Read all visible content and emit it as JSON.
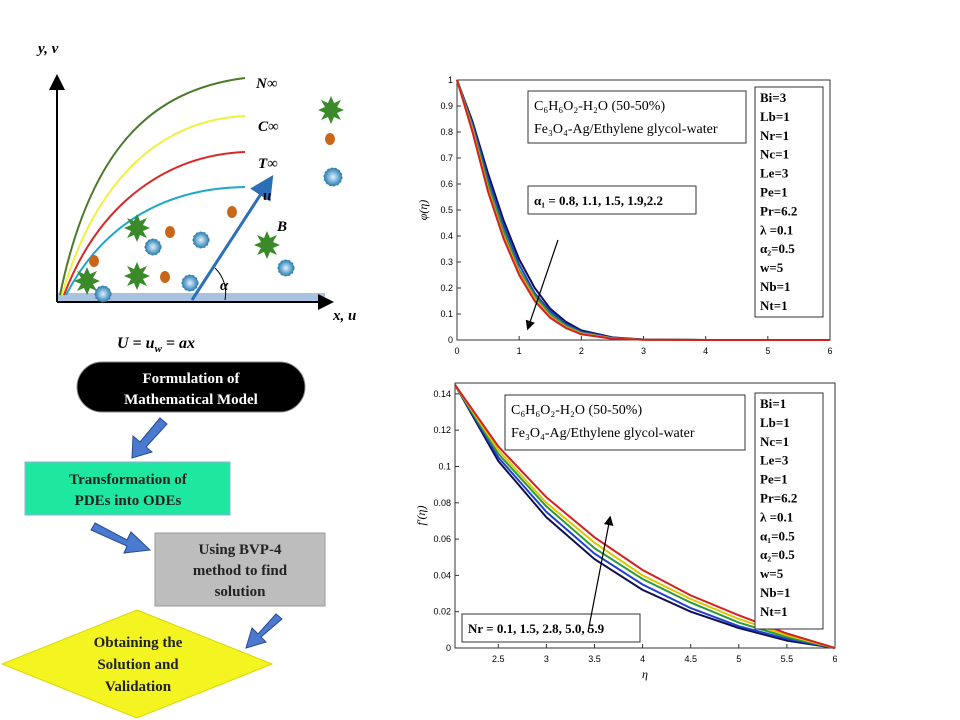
{
  "schematic": {
    "y_axis_label": "y, v",
    "x_axis_label": "x, u",
    "curve_labels": [
      "N∞",
      "C∞",
      "T∞"
    ],
    "velocity_label": "u",
    "field_label": "B",
    "angle_label": "α",
    "wall_condition": [
      "U = u",
      "w",
      " = ax"
    ]
  },
  "flowchart": {
    "steps": [
      {
        "lines": [
          "Formulation of",
          "Mathematical Model"
        ]
      },
      {
        "lines": [
          "Transformation of",
          "PDEs into ODEs"
        ]
      },
      {
        "lines": [
          "Using BVP-4",
          "method to find",
          "solution"
        ]
      },
      {
        "lines": [
          "Obtaining the",
          "Solution and",
          "Validation"
        ]
      }
    ]
  },
  "chart_data": [
    {
      "type": "line",
      "y_label": "φ(η)",
      "info_box": [
        "C₆H₆O₂-H₂O (50-50%)",
        "Fe₃O₄-Ag/Ethylene glycol-water"
      ],
      "parameters": [
        "Bi=3",
        "Lb=1",
        "Nr=1",
        "Nc=1",
        "Le=3",
        "Pe=1",
        "Pr=6.2",
        "λ =0.1",
        "α₂=0.5",
        "w=5",
        "Nb=1",
        "Nt=1"
      ],
      "annotation": "α₁ = 0.8, 1.1, 1.5, 1.9,2.2",
      "xlim": [
        0,
        6
      ],
      "ylim": [
        0,
        1
      ],
      "xticks": [
        0,
        1,
        2,
        3,
        4,
        5,
        6
      ],
      "yticks": [
        0,
        0.1,
        0.2,
        0.3,
        0.4,
        0.5,
        0.6,
        0.7,
        0.8,
        0.9,
        1
      ],
      "x": [
        0,
        0.25,
        0.5,
        0.75,
        1,
        1.25,
        1.5,
        1.75,
        2,
        2.5,
        3,
        4,
        5,
        6
      ],
      "series": [
        {
          "color": "#101050",
          "values": [
            1,
            0.84,
            0.64,
            0.46,
            0.31,
            0.2,
            0.12,
            0.07,
            0.037,
            0.01,
            0.002,
            0,
            0,
            0
          ]
        },
        {
          "color": "#1f3fd0",
          "values": [
            1,
            0.83,
            0.62,
            0.44,
            0.29,
            0.18,
            0.11,
            0.062,
            0.032,
            0.008,
            0.002,
            0,
            0,
            0
          ]
        },
        {
          "color": "#2e9a3a",
          "values": [
            1,
            0.82,
            0.6,
            0.42,
            0.27,
            0.17,
            0.1,
            0.055,
            0.028,
            0.007,
            0.001,
            0,
            0,
            0
          ]
        },
        {
          "color": "#e8a020",
          "values": [
            1,
            0.81,
            0.58,
            0.4,
            0.26,
            0.16,
            0.09,
            0.05,
            0.025,
            0.006,
            0.001,
            0,
            0,
            0
          ]
        },
        {
          "color": "#d42020",
          "values": [
            1,
            0.8,
            0.57,
            0.39,
            0.25,
            0.15,
            0.085,
            0.046,
            0.022,
            0.005,
            0.001,
            0,
            0,
            0
          ]
        }
      ]
    },
    {
      "type": "line",
      "y_label": "f′(η)",
      "x_label": "η",
      "info_box": [
        "C₆H₆O₂-H₂O (50-50%)",
        "Fe₃O₄-Ag/Ethylene glycol-water"
      ],
      "parameters": [
        "Bi=1",
        "Lb=1",
        "Nc=1",
        "Le=3",
        "Pe=1",
        "Pr=6.2",
        "λ =0.1",
        "α₁=0.5",
        "α₂=0.5",
        "w=5",
        "Nb=1",
        "Nt=1"
      ],
      "annotation": "Nr = 0.1, 1.5, 2.8, 5.0, 5.9",
      "xlim": [
        2.05,
        6
      ],
      "ylim": [
        0,
        0.146
      ],
      "xticks": [
        2.5,
        3,
        3.5,
        4,
        4.5,
        5,
        5.5,
        6
      ],
      "yticks": [
        0,
        0.02,
        0.04,
        0.06,
        0.08,
        0.1,
        0.12,
        0.14
      ],
      "x": [
        2.05,
        2.5,
        3,
        3.5,
        4,
        4.5,
        5,
        5.5,
        6
      ],
      "series": [
        {
          "color": "#101050",
          "values": [
            0.145,
            0.103,
            0.072,
            0.049,
            0.032,
            0.02,
            0.011,
            0.004,
            0
          ]
        },
        {
          "color": "#1f3fd0",
          "values": [
            0.145,
            0.105,
            0.075,
            0.052,
            0.035,
            0.022,
            0.012,
            0.005,
            0
          ]
        },
        {
          "color": "#2e9a3a",
          "values": [
            0.145,
            0.107,
            0.078,
            0.055,
            0.038,
            0.025,
            0.014,
            0.006,
            0
          ]
        },
        {
          "color": "#d8c800",
          "values": [
            0.145,
            0.109,
            0.08,
            0.058,
            0.04,
            0.027,
            0.016,
            0.007,
            0
          ]
        },
        {
          "color": "#d42020",
          "values": [
            0.145,
            0.111,
            0.083,
            0.061,
            0.043,
            0.029,
            0.018,
            0.008,
            0
          ]
        }
      ]
    }
  ]
}
